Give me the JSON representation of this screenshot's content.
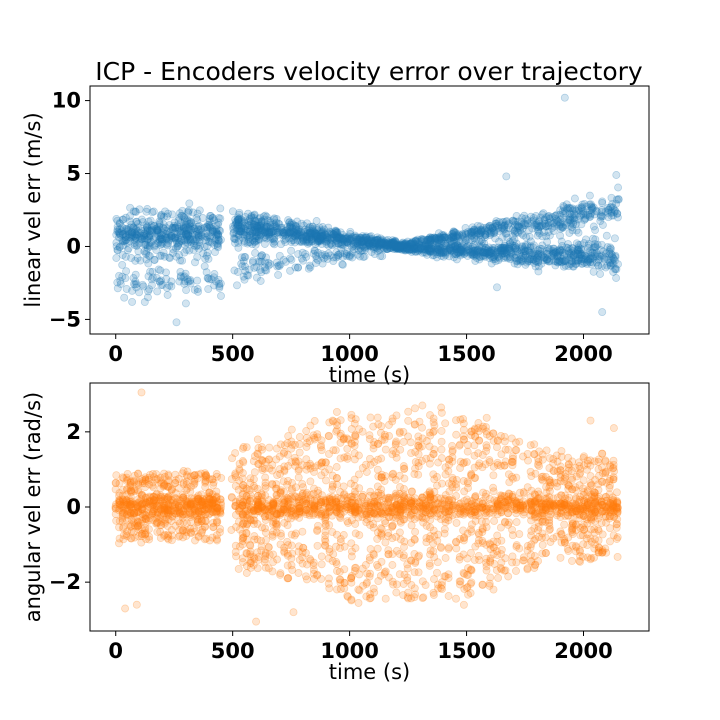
{
  "figure": {
    "title": "ICP - Encoders velocity error over trajectory"
  },
  "chart_data": [
    {
      "type": "scatter",
      "title": "ICP - Encoders velocity error over trajectory",
      "xlabel": "time (s)",
      "ylabel": "linear vel err (m/s)",
      "xlim": [
        -110,
        2280
      ],
      "ylim": [
        -6,
        11
      ],
      "xticks": [
        0,
        500,
        1000,
        1500,
        2000
      ],
      "xtick_labels": [
        "0",
        "500",
        "1000",
        "1500",
        "2000"
      ],
      "yticks": [
        -5,
        0,
        5,
        10
      ],
      "ytick_labels": [
        "−5",
        "0",
        "5",
        "10"
      ],
      "grid": false,
      "legend": "none",
      "color": "#1f77b4",
      "alpha": 0.2,
      "x_range": [
        0,
        2150
      ],
      "gap": [
        450,
        500
      ],
      "series": [
        {
          "description_points": [
            {
              "x": 1920,
              "y": 10.2
            },
            {
              "x": 1670,
              "y": 4.8
            },
            {
              "x": 2140,
              "y": 4.9
            },
            {
              "x": 1630,
              "y": -2.8
            },
            {
              "x": 2080,
              "y": -4.5
            },
            {
              "x": 260,
              "y": -5.2
            },
            {
              "x": 70,
              "y": -3.8
            },
            {
              "x": 300,
              "y": -3.9
            }
          ],
          "band_segments": [
            {
              "x": [
                0,
                450
              ],
              "center": 0.8,
              "spread": 1.8,
              "lower_cluster": -2.4
            },
            {
              "x": [
                500,
                1200
              ],
              "center_start": 1.4,
              "center_end": 0.1,
              "spread_start": 1.2,
              "spread_end": 0.3,
              "lower_start": -1.5,
              "lower_end": -0.1
            },
            {
              "x": [
                1200,
                2150
              ],
              "upper_start": 0.0,
              "upper_end": 2.7,
              "lower_start": -0.1,
              "lower_end": -0.8,
              "spread_end": 1.2
            }
          ]
        }
      ]
    },
    {
      "type": "scatter",
      "xlabel": "time (s)",
      "ylabel": "angular vel err (rad/s)",
      "xlim": [
        -110,
        2280
      ],
      "ylim": [
        -3.3,
        3.3
      ],
      "xticks": [
        0,
        500,
        1000,
        1500,
        2000
      ],
      "xtick_labels": [
        "0",
        "500",
        "1000",
        "1500",
        "2000"
      ],
      "yticks": [
        -2,
        0,
        2
      ],
      "ytick_labels": [
        "−2",
        "0",
        "2"
      ],
      "grid": false,
      "legend": "none",
      "color": "#ff7f0e",
      "alpha": 0.2,
      "x_range": [
        0,
        2150
      ],
      "gap": [
        450,
        500
      ],
      "series": [
        {
          "description_points": [
            {
              "x": 110,
              "y": 3.05
            },
            {
              "x": 600,
              "y": -3.05
            },
            {
              "x": 760,
              "y": -2.8
            },
            {
              "x": 40,
              "y": -2.7
            },
            {
              "x": 90,
              "y": -2.6
            },
            {
              "x": 2030,
              "y": 2.3
            },
            {
              "x": 2130,
              "y": 2.1
            }
          ],
          "envelope": [
            {
              "x": 0,
              "amp": 0.9
            },
            {
              "x": 450,
              "amp": 0.9
            },
            {
              "x": 500,
              "amp": 1.5
            },
            {
              "x": 800,
              "amp": 2.0
            },
            {
              "x": 1000,
              "amp": 2.5
            },
            {
              "x": 1250,
              "amp": 2.5
            },
            {
              "x": 1500,
              "amp": 2.4
            },
            {
              "x": 1800,
              "amp": 1.6
            },
            {
              "x": 2150,
              "amp": 1.3
            }
          ]
        }
      ]
    }
  ]
}
